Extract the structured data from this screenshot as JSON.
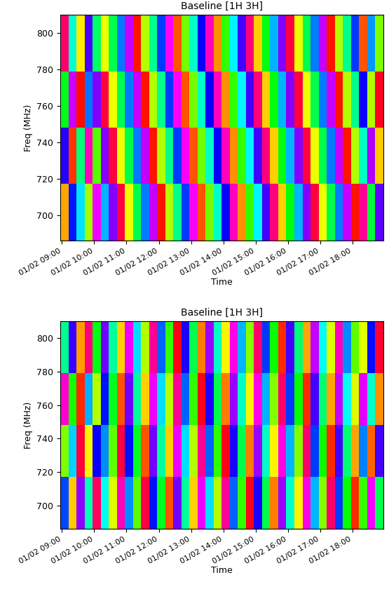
{
  "chart_data": [
    {
      "type": "heatmap",
      "title": "Baseline [1H 3H]",
      "xlabel": "Time",
      "ylabel": "Freq (MHz)",
      "xlim": [
        8.95,
        18.95
      ],
      "xticks": [
        {
          "value": 9,
          "label": "01/02 09:00"
        },
        {
          "value": 10,
          "label": "01/02 10:00"
        },
        {
          "value": 11,
          "label": "01/02 11:00"
        },
        {
          "value": 12,
          "label": "01/02 12:00"
        },
        {
          "value": 13,
          "label": "01/02 13:00"
        },
        {
          "value": 14,
          "label": "01/02 14:00"
        },
        {
          "value": 15,
          "label": "01/02 15:00"
        },
        {
          "value": 16,
          "label": "01/02 16:00"
        },
        {
          "value": 17,
          "label": "01/02 17:00"
        },
        {
          "value": 18,
          "label": "01/02 18:00"
        }
      ],
      "ylim": [
        686,
        810
      ],
      "yticks": [
        700,
        720,
        740,
        760,
        780,
        800
      ],
      "x_edges": [
        8.95,
        9.2,
        9.45,
        9.7,
        9.95,
        10.2,
        10.45,
        10.7,
        10.95,
        11.2,
        11.45,
        11.7,
        11.95,
        12.2,
        12.45,
        12.7,
        12.95,
        13.2,
        13.45,
        13.7,
        13.95,
        14.2,
        14.45,
        14.7,
        14.95,
        15.2,
        15.45,
        15.7,
        15.95,
        16.2,
        16.45,
        16.7,
        16.95,
        17.2,
        17.45,
        17.7,
        17.95,
        18.2,
        18.45,
        18.7,
        18.95
      ],
      "y_edges": [
        686,
        717,
        748,
        779,
        810
      ],
      "color_range": [
        -180,
        180
      ],
      "cells": [
        [
          -140,
          58,
          9,
          -97,
          121,
          20,
          95,
          170,
          -115,
          -40,
          35,
          110,
          -175,
          -100,
          -25,
          50,
          125,
          -160,
          -85,
          -10,
          65,
          140,
          -145,
          -70,
          5,
          80,
          155,
          -130,
          -55,
          20,
          95,
          170,
          -115,
          -40,
          35,
          110,
          -175,
          150,
          -44,
          87
        ],
        [
          73,
          -166,
          -29,
          140,
          -78,
          95,
          170,
          -115,
          -40,
          35,
          110,
          -175,
          -100,
          -25,
          50,
          125,
          -160,
          -85,
          -10,
          65,
          140,
          -145,
          -70,
          5,
          80,
          155,
          -130,
          -55,
          20,
          95,
          170,
          -115,
          -40,
          35,
          110,
          -175,
          -100,
          -12,
          105,
          -131
        ],
        [
          -51,
          112,
          -177,
          36,
          94,
          170,
          -115,
          -40,
          35,
          110,
          -175,
          -100,
          -25,
          50,
          125,
          -160,
          -85,
          -10,
          65,
          140,
          -145,
          -70,
          5,
          80,
          155,
          -130,
          -55,
          20,
          95,
          170,
          -115,
          -40,
          35,
          110,
          -175,
          -100,
          -25,
          66,
          -99,
          178
        ],
        [
          160,
          -8,
          -123,
          81,
          -35,
          -115,
          -40,
          35,
          110,
          -175,
          -100,
          -25,
          50,
          125,
          -160,
          -85,
          -10,
          65,
          140,
          -145,
          -70,
          5,
          80,
          155,
          -130,
          -55,
          20,
          95,
          170,
          -115,
          -40,
          35,
          110,
          -175,
          -100,
          -25,
          50,
          -160,
          27,
          -88
        ]
      ]
    },
    {
      "type": "heatmap",
      "title": "Baseline [1H 3H]",
      "xlabel": "Time",
      "ylabel": "Freq (MHz)",
      "xlim": [
        8.95,
        18.95
      ],
      "xticks": [
        {
          "value": 9,
          "label": "01/02 09:00"
        },
        {
          "value": 10,
          "label": "01/02 10:00"
        },
        {
          "value": 11,
          "label": "01/02 11:00"
        },
        {
          "value": 12,
          "label": "01/02 12:00"
        },
        {
          "value": 13,
          "label": "01/02 13:00"
        },
        {
          "value": 14,
          "label": "01/02 14:00"
        },
        {
          "value": 15,
          "label": "01/02 15:00"
        },
        {
          "value": 16,
          "label": "01/02 16:00"
        },
        {
          "value": 17,
          "label": "01/02 17:00"
        },
        {
          "value": 18,
          "label": "01/02 18:00"
        }
      ],
      "ylim": [
        686,
        810
      ],
      "yticks": [
        700,
        720,
        740,
        760,
        780,
        800
      ],
      "x_edges": [
        8.95,
        9.2,
        9.45,
        9.7,
        9.95,
        10.2,
        10.45,
        10.7,
        10.95,
        11.2,
        11.45,
        11.7,
        11.95,
        12.2,
        12.45,
        12.7,
        12.95,
        13.2,
        13.45,
        13.7,
        13.95,
        14.2,
        14.45,
        14.7,
        14.95,
        15.2,
        15.45,
        15.7,
        15.95,
        16.2,
        16.45,
        16.7,
        16.95,
        17.2,
        17.45,
        17.7,
        17.95,
        18.2,
        18.45,
        18.7,
        18.95
      ],
      "y_edges": [
        686,
        717,
        748,
        779,
        810
      ],
      "color_range": [
        -180,
        180
      ],
      "cells": [
        [
          47,
          -132,
          98,
          -15,
          163,
          0,
          -110,
          140,
          30,
          -80,
          170,
          60,
          -50,
          -160,
          90,
          -20,
          -130,
          120,
          10,
          -100,
          150,
          40,
          -70,
          180,
          70,
          -40,
          -150,
          100,
          -10,
          -120,
          130,
          20,
          -90,
          160,
          50,
          -60,
          -170,
          -71,
          122,
          -38
        ],
        [
          -88,
          14,
          171,
          -120,
          65,
          30,
          -80,
          170,
          60,
          -50,
          -160,
          90,
          -20,
          -130,
          120,
          10,
          -100,
          150,
          40,
          -70,
          180,
          70,
          -40,
          -150,
          100,
          -10,
          -120,
          130,
          20,
          -90,
          160,
          50,
          -60,
          -170,
          80,
          -30,
          -140,
          33,
          -155,
          80
        ],
        [
          135,
          -62,
          -170,
          22,
          -101,
          60,
          -50,
          -160,
          90,
          -20,
          -130,
          120,
          10,
          -100,
          150,
          40,
          -70,
          180,
          70,
          -40,
          -150,
          100,
          -10,
          -120,
          130,
          20,
          -90,
          160,
          50,
          -60,
          -170,
          80,
          -30,
          -140,
          110,
          0,
          -110,
          118,
          -9,
          -146
        ],
        [
          -25,
          77,
          -143,
          156,
          -54,
          90,
          -20,
          -130,
          120,
          10,
          -100,
          150,
          40,
          -70,
          180,
          70,
          -40,
          -150,
          100,
          -10,
          -120,
          130,
          20,
          -90,
          160,
          50,
          -60,
          -170,
          80,
          -30,
          -140,
          110,
          0,
          -110,
          140,
          30,
          -80,
          -112,
          61,
          174
        ]
      ]
    }
  ]
}
